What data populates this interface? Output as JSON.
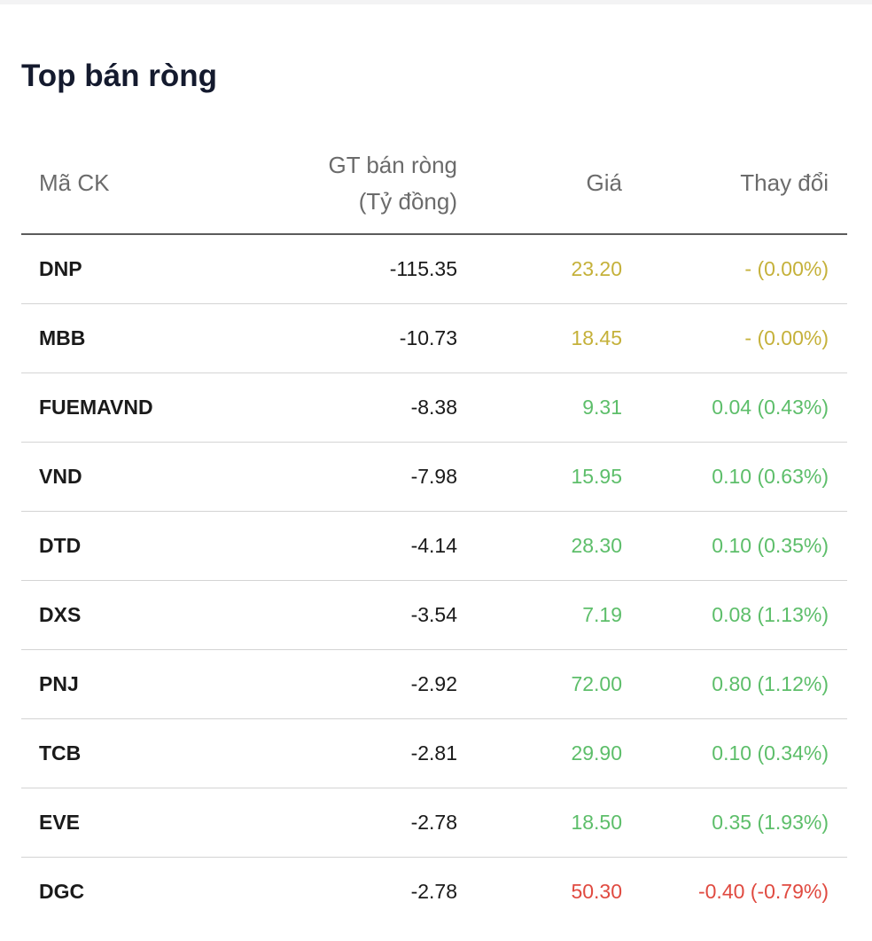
{
  "title": "Top bán ròng",
  "headers": {
    "code": "Mã CK",
    "value_line1": "GT bán ròng",
    "value_line2": "(Tỷ đồng)",
    "price": "Giá",
    "change": "Thay đổi"
  },
  "colors": {
    "reference": "#c5b13a",
    "up": "#5dbe6a",
    "down": "#e04a40"
  },
  "rows": [
    {
      "code": "DNP",
      "value": "-115.35",
      "price": "23.20",
      "change": "- (0.00%)",
      "trend": "ref"
    },
    {
      "code": "MBB",
      "value": "-10.73",
      "price": "18.45",
      "change": "- (0.00%)",
      "trend": "ref"
    },
    {
      "code": "FUEMAVND",
      "value": "-8.38",
      "price": "9.31",
      "change": "0.04 (0.43%)",
      "trend": "up"
    },
    {
      "code": "VND",
      "value": "-7.98",
      "price": "15.95",
      "change": "0.10 (0.63%)",
      "trend": "up"
    },
    {
      "code": "DTD",
      "value": "-4.14",
      "price": "28.30",
      "change": "0.10 (0.35%)",
      "trend": "up"
    },
    {
      "code": "DXS",
      "value": "-3.54",
      "price": "7.19",
      "change": "0.08 (1.13%)",
      "trend": "up"
    },
    {
      "code": "PNJ",
      "value": "-2.92",
      "price": "72.00",
      "change": "0.80 (1.12%)",
      "trend": "up"
    },
    {
      "code": "TCB",
      "value": "-2.81",
      "price": "29.90",
      "change": "0.10 (0.34%)",
      "trend": "up"
    },
    {
      "code": "EVE",
      "value": "-2.78",
      "price": "18.50",
      "change": "0.35 (1.93%)",
      "trend": "up"
    },
    {
      "code": "DGC",
      "value": "-2.78",
      "price": "50.30",
      "change": "-0.40 (-0.79%)",
      "trend": "down"
    }
  ]
}
